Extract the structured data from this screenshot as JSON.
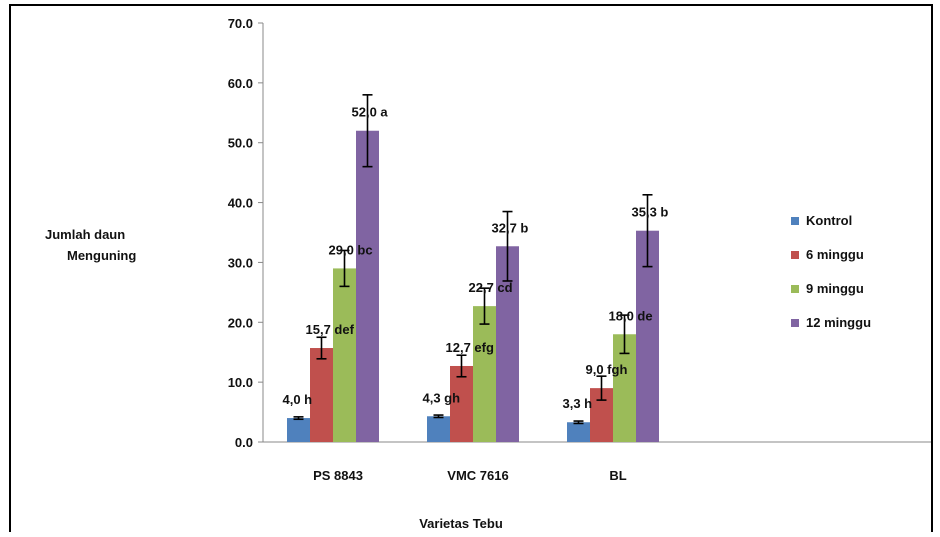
{
  "chart_data": {
    "type": "bar",
    "title": "",
    "xlabel": "Varietas Tebu",
    "ylabel_lines": [
      "Jumlah daun",
      "Menguning"
    ],
    "ylim": [
      0,
      70
    ],
    "y_ticks": [
      "0.0",
      "10.0",
      "20.0",
      "30.0",
      "40.0",
      "50.0",
      "60.0",
      "70.0"
    ],
    "grid": false,
    "legend_position": "right",
    "categories": [
      "PS 8843",
      "VMC 7616",
      "BL"
    ],
    "series": [
      {
        "name": "Kontrol",
        "color": "#4f81bd",
        "values": [
          4.0,
          4.3,
          3.3
        ],
        "errors": [
          0.2,
          0.2,
          0.2
        ],
        "labels": [
          "4,0 h",
          "4,3 gh",
          "3,3 h"
        ]
      },
      {
        "name": "6 minggu",
        "color": "#c0504d",
        "values": [
          15.7,
          12.7,
          9.0
        ],
        "errors": [
          1.8,
          1.8,
          2.0
        ],
        "labels": [
          "15,7 def",
          "12,7 efg",
          "9,0 fgh"
        ]
      },
      {
        "name": "9 minggu",
        "color": "#9bbb59",
        "values": [
          29.0,
          22.7,
          18.0
        ],
        "errors": [
          3.0,
          3.0,
          3.2
        ],
        "labels": [
          "29,0 bc",
          "22,7 cd",
          "18,0 de"
        ]
      },
      {
        "name": "12 minggu",
        "color": "#8064a2",
        "values": [
          52.0,
          32.7,
          35.3
        ],
        "errors": [
          6.0,
          5.8,
          6.0
        ],
        "labels": [
          "52,0 a",
          "32,7 b",
          "35,3 b"
        ]
      }
    ]
  }
}
